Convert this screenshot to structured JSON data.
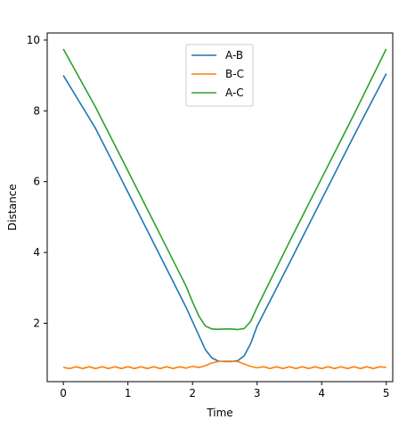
{
  "chart_data": {
    "type": "line",
    "title": "",
    "xlabel": "Time",
    "ylabel": "Distance",
    "xlim": [
      -0.25,
      5.1
    ],
    "ylim": [
      0.35,
      10.2
    ],
    "xticks": [
      0,
      1,
      2,
      3,
      4,
      5
    ],
    "yticks": [
      2,
      4,
      6,
      8,
      10
    ],
    "grid": false,
    "legend_position": "top-center",
    "series": [
      {
        "name": "A-B",
        "color": "#1f77b4",
        "x": [
          0,
          0.5,
          1.0,
          1.5,
          1.9,
          2.1,
          2.2,
          2.3,
          2.4,
          2.5,
          2.6,
          2.7,
          2.8,
          2.9,
          3.0,
          3.5,
          4.0,
          4.5,
          5.0
        ],
        "y": [
          9.0,
          7.5,
          5.7,
          3.9,
          2.45,
          1.65,
          1.25,
          1.02,
          0.93,
          0.92,
          0.92,
          0.94,
          1.08,
          1.42,
          1.92,
          3.7,
          5.5,
          7.3,
          9.05
        ]
      },
      {
        "name": "B-C",
        "color": "#ff7f0e",
        "x": [
          0,
          0.1,
          0.2,
          0.3,
          0.4,
          0.5,
          0.6,
          0.7,
          0.8,
          0.9,
          1.0,
          1.1,
          1.2,
          1.3,
          1.4,
          1.5,
          1.6,
          1.7,
          1.8,
          1.9,
          2.0,
          2.1,
          2.2,
          2.3,
          2.4,
          2.5,
          2.6,
          2.7,
          2.8,
          2.9,
          3.0,
          3.1,
          3.2,
          3.3,
          3.4,
          3.5,
          3.6,
          3.7,
          3.8,
          3.9,
          4.0,
          4.1,
          4.2,
          4.3,
          4.4,
          4.5,
          4.6,
          4.7,
          4.8,
          4.9,
          5.0
        ],
        "y": [
          0.75,
          0.72,
          0.77,
          0.72,
          0.77,
          0.72,
          0.77,
          0.72,
          0.77,
          0.72,
          0.77,
          0.72,
          0.77,
          0.72,
          0.77,
          0.72,
          0.77,
          0.72,
          0.77,
          0.73,
          0.78,
          0.75,
          0.8,
          0.88,
          0.92,
          0.93,
          0.93,
          0.92,
          0.85,
          0.78,
          0.74,
          0.77,
          0.72,
          0.77,
          0.72,
          0.77,
          0.72,
          0.77,
          0.72,
          0.77,
          0.72,
          0.77,
          0.72,
          0.77,
          0.72,
          0.77,
          0.72,
          0.77,
          0.72,
          0.77,
          0.75
        ]
      },
      {
        "name": "A-C",
        "color": "#2ca02c",
        "x": [
          0,
          0.5,
          1.0,
          1.5,
          1.9,
          2.0,
          2.1,
          2.2,
          2.3,
          2.4,
          2.5,
          2.6,
          2.7,
          2.8,
          2.9,
          3.0,
          3.5,
          4.0,
          4.5,
          5.0
        ],
        "y": [
          9.75,
          8.1,
          6.3,
          4.5,
          3.05,
          2.6,
          2.2,
          1.92,
          1.84,
          1.83,
          1.84,
          1.84,
          1.82,
          1.85,
          2.05,
          2.45,
          4.3,
          6.1,
          7.9,
          9.75
        ]
      }
    ]
  }
}
